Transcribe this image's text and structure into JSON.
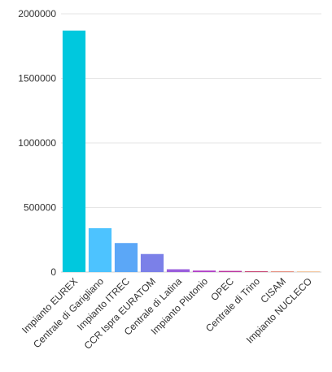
{
  "chart_data": {
    "type": "bar",
    "categories": [
      "Impianto EUREX",
      "Centrale di Garigliano",
      "Impianto ITREC",
      "CCR Ispra EURATOM",
      "Centrale di Latina",
      "Impianto Plutonio",
      "OPEC",
      "Centrale di Trino",
      "CISAM",
      "Impianto NUCLECO"
    ],
    "values": [
      1870000,
      340000,
      225000,
      140000,
      22000,
      12000,
      9000,
      6000,
      4000,
      2000
    ],
    "colors": [
      "#00c8de",
      "#4dc3ff",
      "#5ba7f7",
      "#7b80e8",
      "#9a5fdc",
      "#b244c8",
      "#b8329e",
      "#c33a6b",
      "#e48a7a",
      "#f3c49c"
    ],
    "ylim": [
      0,
      2000000
    ],
    "yticks": [
      "0",
      "500000",
      "1000000",
      "1500000",
      "2000000"
    ],
    "grid": true,
    "legend": "none"
  }
}
